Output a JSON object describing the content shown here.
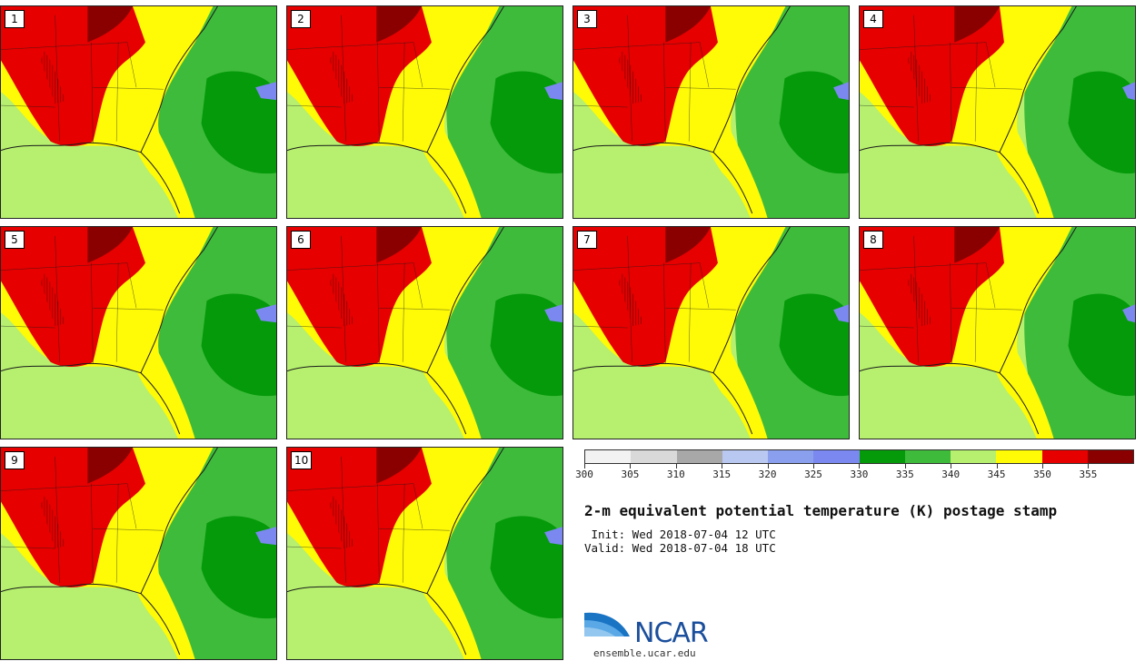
{
  "colors": {
    "level_0": "#f2f2f2",
    "level_1": "#d9d9d9",
    "level_2": "#a8a8a8",
    "level_3": "#b8c8f0",
    "level_4": "#8aa0ee",
    "level_5": "#7a88f0",
    "level_6": "#059a0a",
    "level_7": "#3fbb3c",
    "level_8": "#b6f06e",
    "level_9": "#fffb06",
    "level_10": "#e60000",
    "level_11": "#8a0000",
    "hatch": "#5a0000",
    "state_border": "#1a1a1a"
  },
  "stamps": [
    {
      "label": "1"
    },
    {
      "label": "2"
    },
    {
      "label": "3"
    },
    {
      "label": "4"
    },
    {
      "label": "5"
    },
    {
      "label": "6"
    },
    {
      "label": "7"
    },
    {
      "label": "8"
    },
    {
      "label": "9"
    },
    {
      "label": "10"
    }
  ],
  "colorbar": {
    "ticks": [
      "300",
      "305",
      "310",
      "315",
      "320",
      "325",
      "330",
      "335",
      "340",
      "345",
      "350",
      "355"
    ]
  },
  "title": "2-m equivalent potential temperature (K) postage stamp",
  "init": " Init: Wed 2018-07-04 12 UTC",
  "valid": "Valid: Wed 2018-07-04 18 UTC",
  "logo": {
    "wordmark": "NCAR",
    "url": "ensemble.ucar.edu"
  }
}
